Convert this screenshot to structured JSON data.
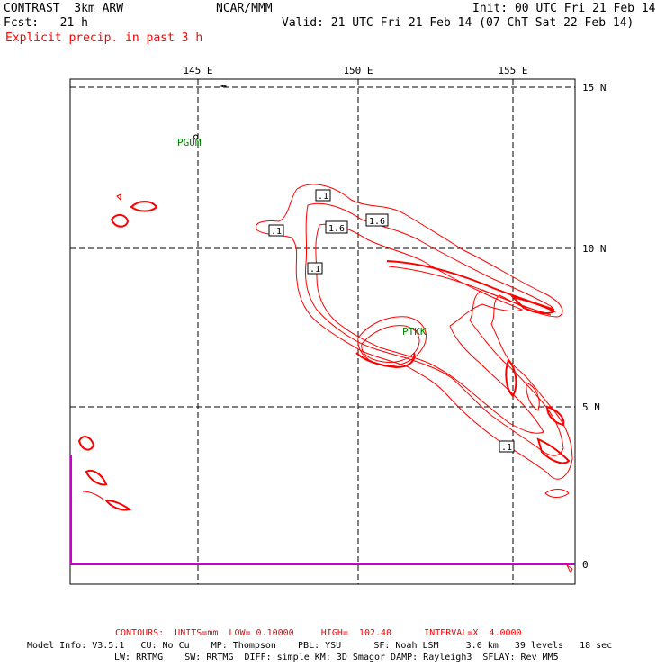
{
  "header": {
    "left1": "CONTRAST  3km ARW",
    "center1": "NCAR/MMM",
    "right1": "Init: 00 UTC Fri 21 Feb 14",
    "left2": "Fcst:   21 h",
    "right2": "Valid: 21 UTC Fri 21 Feb 14 (07 ChT Sat 22 Feb 14)",
    "field": "Explicit precip. in past 3 h"
  },
  "map": {
    "lon_labels": [
      "145 E",
      "150 E",
      "155 E"
    ],
    "lat_labels": [
      "15 N",
      "10 N",
      "5 N",
      "0"
    ],
    "stations": [
      "PGUM",
      "PTKK"
    ],
    "contour_labels": [
      ".1",
      ".1",
      "1.6",
      "1.6",
      ".1",
      ".1"
    ],
    "contour_color": "#ff0000",
    "boundary_color": "#cc00cc"
  },
  "footer": {
    "contours": "CONTOURS:  UNITS=mm  LOW= 0.10000     HIGH=  102.40      INTERVAL=X  4.0000",
    "model1": "Model Info: V3.5.1   CU: No Cu    MP: Thompson    PBL: YSU      SF: Noah LSM     3.0 km   39 levels   18 sec",
    "model2": "LW: RRTMG    SW: RRTMG  DIFF: simple KM: 3D Smagor DAMP: Rayleigh3  SFLAY: Rev MM5"
  }
}
